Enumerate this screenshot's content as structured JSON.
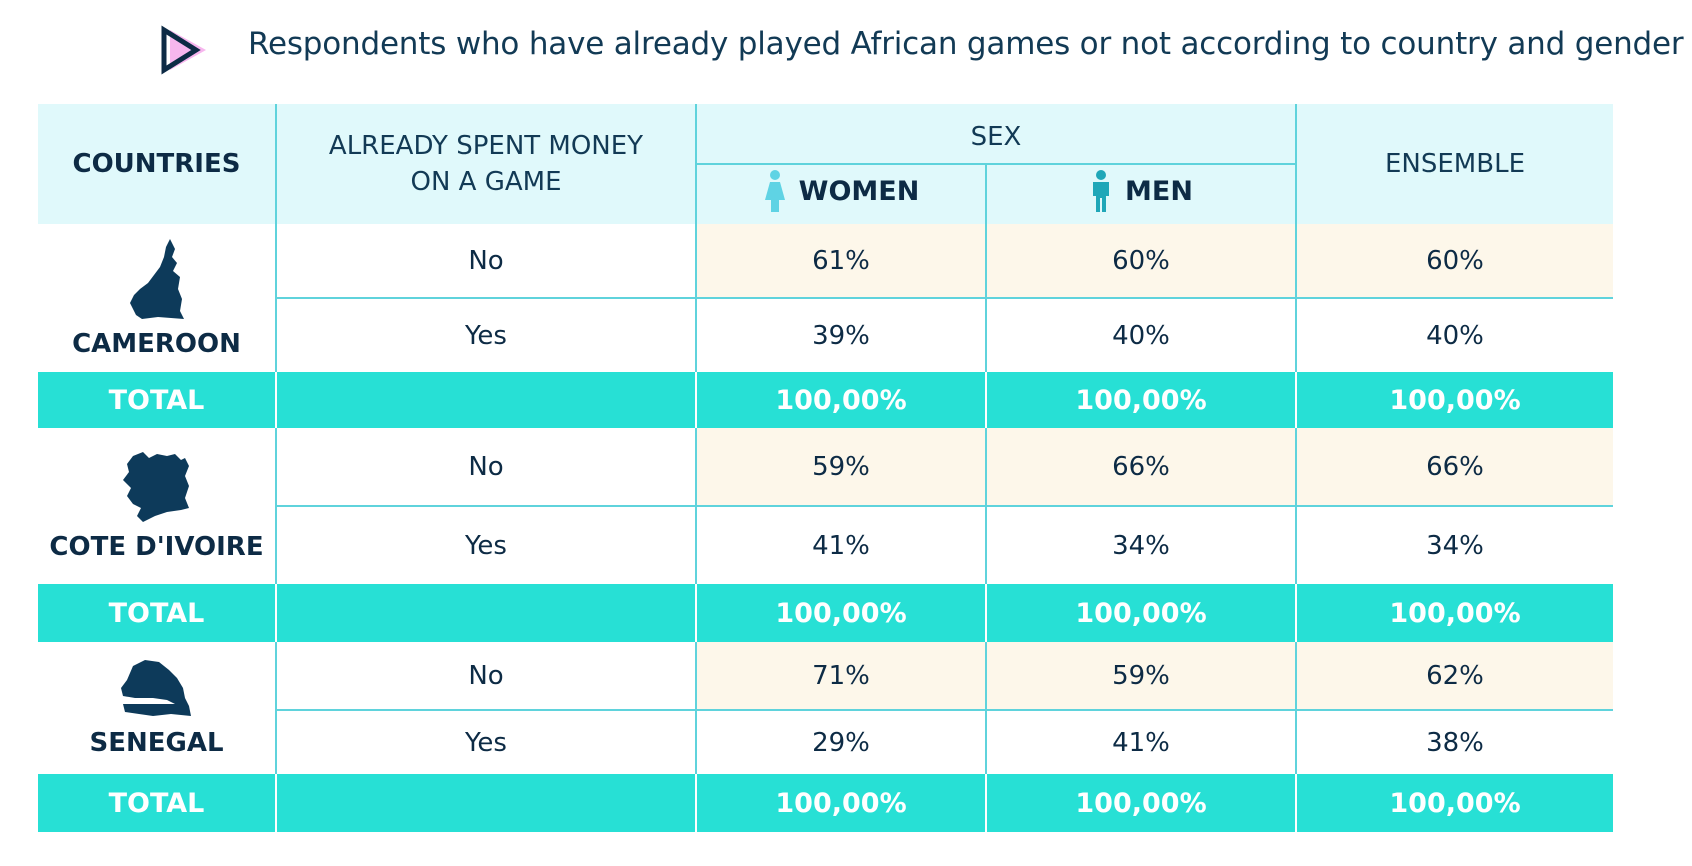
{
  "title": "Respondents who have already played African games or not according to country and gender",
  "header": {
    "countries": "COUNTRIES",
    "spent_line1": "ALREADY SPENT MONEY",
    "spent_line2": "ON A GAME",
    "sex": "SEX",
    "women": "WOMEN",
    "men": "MEN",
    "ensemble": "ENSEMBLE"
  },
  "icons": {
    "logo": "play-triangle-logo-icon",
    "women": "woman-icon",
    "men": "man-icon"
  },
  "colors": {
    "header_bg": "#e0f9fb",
    "total_bg": "#27e0d5",
    "no_row_bg": "#fdf7ea",
    "border": "#5fd3dc",
    "text": "#0d2b45"
  },
  "chart_data": {
    "type": "table",
    "columns": [
      "COUNTRIES",
      "ALREADY SPENT MONEY ON A GAME",
      "WOMEN",
      "MEN",
      "ENSEMBLE"
    ],
    "total_label": "TOTAL",
    "total_value": "100,00%",
    "countries": [
      {
        "name": "CAMEROON",
        "rows": [
          {
            "answer": "No",
            "women": "61%",
            "men": "60%",
            "ensemble": "60%"
          },
          {
            "answer": "Yes",
            "women": "39%",
            "men": "40%",
            "ensemble": "40%"
          }
        ]
      },
      {
        "name": "COTE D'IVOIRE",
        "rows": [
          {
            "answer": "No",
            "women": "59%",
            "men": "66%",
            "ensemble": "66%"
          },
          {
            "answer": "Yes",
            "women": "41%",
            "men": "34%",
            "ensemble": "34%"
          }
        ]
      },
      {
        "name": "SENEGAL",
        "rows": [
          {
            "answer": "No",
            "women": "71%",
            "men": "59%",
            "ensemble": "62%"
          },
          {
            "answer": "Yes",
            "women": "29%",
            "men": "41%",
            "ensemble": "38%"
          }
        ]
      }
    ]
  }
}
